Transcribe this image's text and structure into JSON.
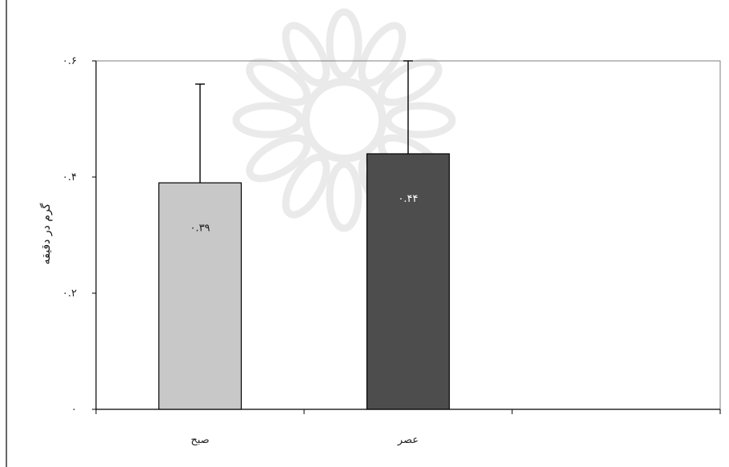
{
  "chart_data": {
    "type": "bar",
    "categories": [
      "صبح",
      "عصر"
    ],
    "values": [
      0.39,
      0.44
    ],
    "value_labels": [
      "۰.۳۹",
      "۰.۴۴"
    ],
    "error_upper": [
      0.56,
      0.6
    ],
    "ylabel": "گرم در دقیقه",
    "xlabel": "",
    "title": "",
    "ylim": [
      0,
      0.6
    ],
    "yticks": [
      0,
      0.2,
      0.4,
      0.6
    ],
    "ytick_labels": [
      "۰",
      "۰.۲",
      "۰.۴",
      "۰.۶"
    ],
    "grid": false,
    "legend": "none",
    "colors": {
      "bar_fill": [
        "#c8c8c8",
        "#4d4d4d"
      ],
      "label_text": [
        "#1a1a1a",
        "#ffffff"
      ],
      "axis": "#000000",
      "watermark": "#d9d9d9"
    }
  }
}
